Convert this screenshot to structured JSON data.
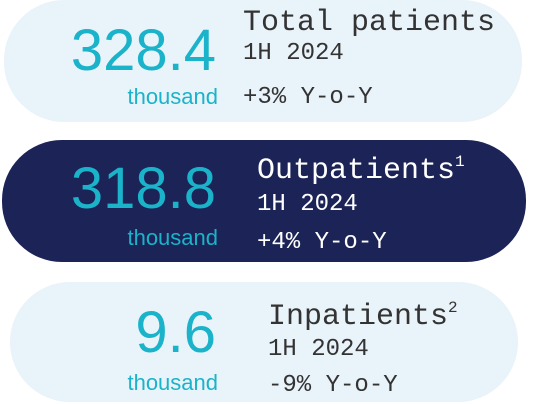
{
  "cards": [
    {
      "value": "328.4",
      "unit": "thousand",
      "label": "Total patients",
      "period": "1H 2024",
      "change": "+3% Y-o-Y"
    },
    {
      "value": "318.8",
      "unit": "thousand",
      "label": "Outpatients",
      "footnote": "1",
      "period": "1H 2024",
      "change": "+4% Y-o-Y"
    },
    {
      "value": "9.6",
      "unit": "thousand",
      "label": "Inpatients",
      "footnote": "2",
      "period": "1H 2024",
      "change": "-9% Y-o-Y"
    }
  ]
}
